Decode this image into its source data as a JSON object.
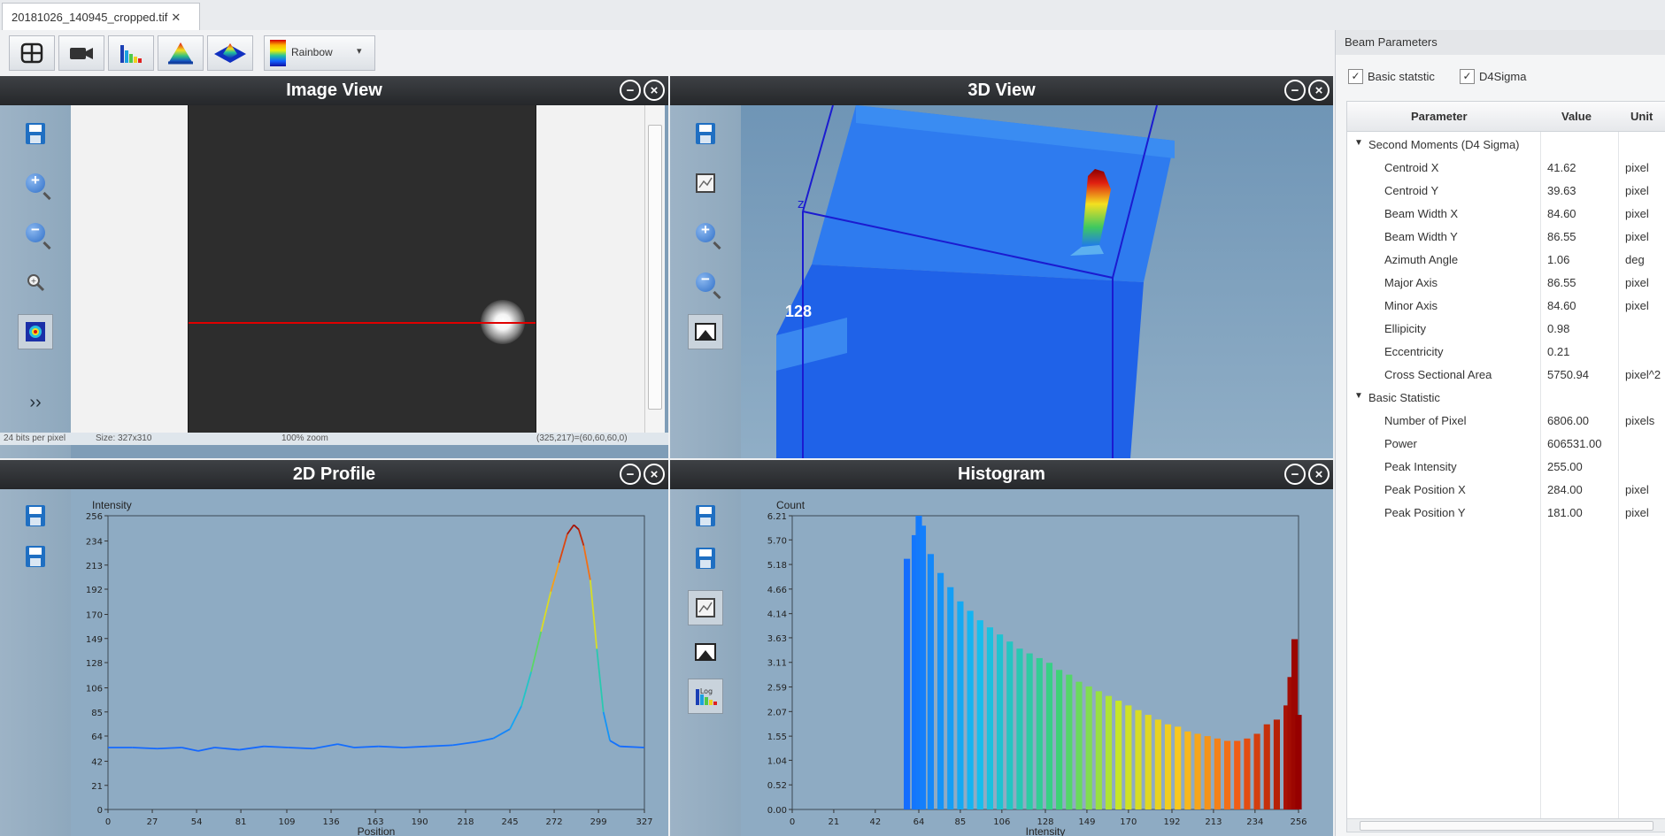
{
  "tab": {
    "title": "20181026_140945_cropped.tif",
    "close": "✕"
  },
  "toolbar": {
    "palette_label": "Rainbow",
    "palette_arrow": "▾"
  },
  "panels": {
    "image_view": {
      "title": "Image View",
      "expand": "››",
      "status_bits": "24 bits per pixel",
      "status_size": "Size: 327x310",
      "status_zoom": "100% zoom",
      "status_coords": "(325,217)=(60,60,60,0)"
    },
    "view3d": {
      "title": "3D View",
      "axis_label": "128",
      "z_tick": "z"
    },
    "profile": {
      "title": "2D Profile"
    },
    "histogram": {
      "title": "Histogram",
      "log_label": "Log"
    }
  },
  "beam": {
    "title": "Beam Parameters",
    "checks": [
      {
        "label": "Basic statstic",
        "checked": true
      },
      {
        "label": "D4Sigma",
        "checked": true
      }
    ],
    "columns": {
      "parameter": "Parameter",
      "value": "Value",
      "unit": "Unit"
    },
    "groups": [
      {
        "name": "Second Moments (D4 Sigma)",
        "rows": [
          {
            "param": "Centroid X",
            "value": "41.62",
            "unit": "pixel"
          },
          {
            "param": "Centroid Y",
            "value": "39.63",
            "unit": "pixel"
          },
          {
            "param": "Beam Width X",
            "value": "84.60",
            "unit": "pixel"
          },
          {
            "param": "Beam Width Y",
            "value": "86.55",
            "unit": "pixel"
          },
          {
            "param": "Azimuth Angle",
            "value": "1.06",
            "unit": "deg"
          },
          {
            "param": "Major Axis",
            "value": "86.55",
            "unit": "pixel"
          },
          {
            "param": "Minor Axis",
            "value": "84.60",
            "unit": "pixel"
          },
          {
            "param": "Ellipicity",
            "value": "0.98",
            "unit": ""
          },
          {
            "param": "Eccentricity",
            "value": "0.21",
            "unit": ""
          },
          {
            "param": "Cross Sectional Area",
            "value": "5750.94",
            "unit": "pixel^2"
          }
        ]
      },
      {
        "name": "Basic Statistic",
        "rows": [
          {
            "param": "Number of Pixel",
            "value": "6806.00",
            "unit": "pixels"
          },
          {
            "param": "Power",
            "value": "606531.00",
            "unit": ""
          },
          {
            "param": "Peak Intensity",
            "value": "255.00",
            "unit": ""
          },
          {
            "param": "Peak Position X",
            "value": "284.00",
            "unit": "pixel"
          },
          {
            "param": "Peak Position Y",
            "value": "181.00",
            "unit": "pixel"
          }
        ]
      }
    ]
  },
  "chart_data": [
    {
      "type": "line",
      "chart": "2D Profile",
      "xlabel": "Position",
      "ylabel": "Intensity",
      "xlim": [
        0,
        327
      ],
      "ylim": [
        0,
        256
      ],
      "xticks": [
        0,
        27,
        54,
        81,
        109,
        136,
        163,
        190,
        218,
        245,
        272,
        299,
        327
      ],
      "yticks": [
        0,
        21,
        42,
        64,
        85,
        106,
        128,
        149,
        170,
        192,
        213,
        234,
        256
      ],
      "x": [
        0,
        15,
        30,
        45,
        55,
        65,
        80,
        95,
        110,
        125,
        140,
        150,
        165,
        180,
        195,
        210,
        225,
        235,
        245,
        252,
        258,
        264,
        270,
        275,
        280,
        284,
        287,
        290,
        294,
        298,
        302,
        306,
        312,
        327
      ],
      "y": [
        54,
        54,
        53,
        54,
        51,
        54,
        52,
        55,
        54,
        53,
        57,
        54,
        55,
        54,
        55,
        56,
        59,
        62,
        70,
        90,
        120,
        155,
        190,
        215,
        240,
        248,
        244,
        230,
        200,
        140,
        85,
        60,
        55,
        54
      ]
    },
    {
      "type": "bar",
      "chart": "Histogram",
      "xlabel": "Intensity",
      "ylabel": "Count",
      "xlim": [
        0,
        256
      ],
      "ylim": [
        0,
        6.21
      ],
      "xticks": [
        0,
        21,
        42,
        64,
        85,
        106,
        128,
        149,
        170,
        192,
        213,
        234,
        256
      ],
      "yticks": [
        "0.00",
        "0.52",
        "1.04",
        "1.55",
        "2.07",
        "2.59",
        "3.11",
        "3.63",
        "4.14",
        "4.66",
        "5.18",
        "5.70",
        "6.21"
      ],
      "x": [
        54,
        58,
        62,
        64,
        66,
        70,
        75,
        80,
        85,
        90,
        95,
        100,
        105,
        110,
        115,
        120,
        125,
        130,
        135,
        140,
        145,
        150,
        155,
        160,
        165,
        170,
        175,
        180,
        185,
        190,
        195,
        200,
        205,
        210,
        215,
        220,
        225,
        230,
        235,
        240,
        245,
        250,
        252,
        254,
        256
      ],
      "values": [
        0,
        5.3,
        5.8,
        6.21,
        6.0,
        5.4,
        5.0,
        4.7,
        4.4,
        4.2,
        4.0,
        3.85,
        3.7,
        3.55,
        3.4,
        3.3,
        3.2,
        3.1,
        2.95,
        2.85,
        2.7,
        2.6,
        2.5,
        2.4,
        2.3,
        2.2,
        2.1,
        2.0,
        1.9,
        1.8,
        1.75,
        1.65,
        1.6,
        1.55,
        1.5,
        1.45,
        1.45,
        1.5,
        1.6,
        1.8,
        1.9,
        2.2,
        2.8,
        3.6,
        2.0
      ]
    }
  ]
}
